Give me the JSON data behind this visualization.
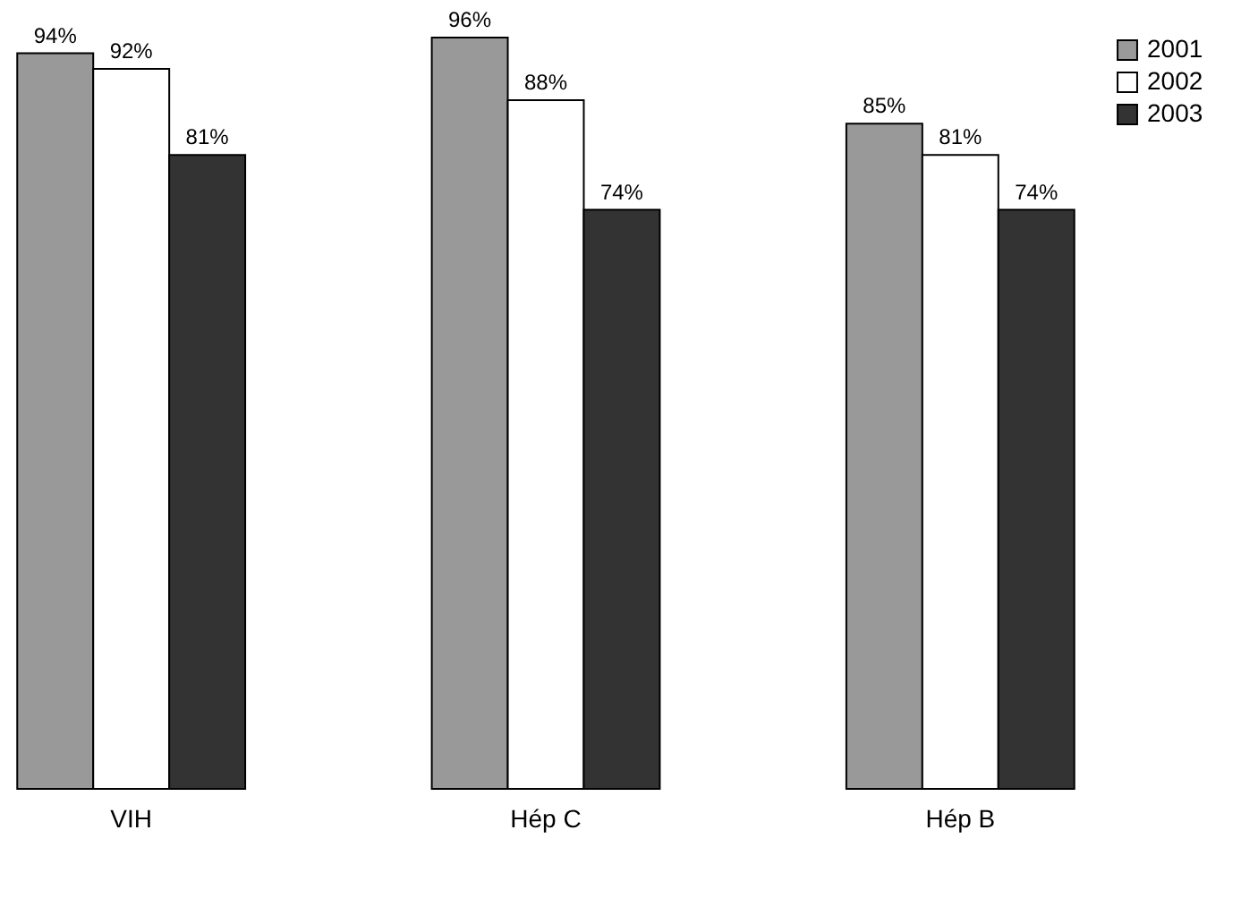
{
  "chart_data": {
    "type": "bar",
    "categories": [
      "VIH",
      "Hép C",
      "Hép B"
    ],
    "series": [
      {
        "name": "2001",
        "color": "#999999",
        "values": [
          94,
          96,
          85
        ],
        "value_labels": [
          "94%",
          "96%",
          "85%"
        ]
      },
      {
        "name": "2002",
        "color": "#ffffff",
        "values": [
          92,
          88,
          81
        ],
        "value_labels": [
          "92%",
          "88%",
          "81%"
        ]
      },
      {
        "name": "2003",
        "color": "#333333",
        "values": [
          81,
          74,
          74
        ],
        "value_labels": [
          "81%",
          "74%",
          "74%"
        ]
      }
    ],
    "legend": "top right",
    "grid": false
  }
}
